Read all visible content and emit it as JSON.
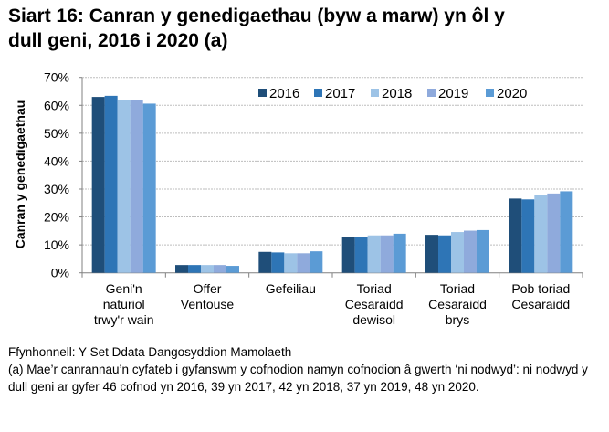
{
  "title_line1": "Siart 16: Canran y genedigaethau (byw a marw) yn ôl y",
  "title_line2": "dull geni, 2016 i 2020 (a)",
  "source": "Ffynhonnell: Y Set Ddata Dangosyddion Mamolaeth",
  "footnote": "(a) Mae’r canrannau’n cyfateb i gyfanswm y cofnodion namyn cofnodion â gwerth ‘ni nodwyd’: ni nodwyd y dull geni ar gyfer 46 cofnod yn 2016, 39 yn 2017, 42 yn 2018, 37 yn 2019, 48 yn 2020.",
  "chart_data": {
    "type": "bar",
    "title": "Siart 16: Canran y genedigaethau (byw a marw) yn ôl y dull geni, 2016 i 2020 (a)",
    "ylabel": "Canran y genedigaethau",
    "xlabel": "",
    "ylim": [
      0,
      70
    ],
    "yticks": [
      "0%",
      "10%",
      "20%",
      "30%",
      "40%",
      "50%",
      "60%",
      "70%"
    ],
    "grid": true,
    "legend_position": "top-right",
    "categories": [
      [
        "Geni'n",
        "naturiol",
        "trwy'r wain"
      ],
      [
        "Offer",
        "Ventouse"
      ],
      [
        "Gefeiliau"
      ],
      [
        "Toriad",
        "Cesaraidd",
        "dewisol"
      ],
      [
        "Toriad",
        "Cesaraidd",
        "brys"
      ],
      [
        "Pob toriad",
        "Cesaraidd"
      ]
    ],
    "series": [
      {
        "name": "2016",
        "color": "#1f4e79",
        "values": [
          63.0,
          2.8,
          7.5,
          12.9,
          13.6,
          26.6
        ]
      },
      {
        "name": "2017",
        "color": "#2e75b6",
        "values": [
          63.4,
          2.8,
          7.3,
          12.9,
          13.4,
          26.3
        ]
      },
      {
        "name": "2018",
        "color": "#9dc3e6",
        "values": [
          62.0,
          2.8,
          7.0,
          13.4,
          14.6,
          27.9
        ]
      },
      {
        "name": "2019",
        "color": "#8faadc",
        "values": [
          61.8,
          2.8,
          7.0,
          13.4,
          15.1,
          28.4
        ]
      },
      {
        "name": "2020",
        "color": "#5b9bd5",
        "values": [
          60.6,
          2.5,
          7.7,
          14.0,
          15.3,
          29.2
        ]
      }
    ]
  }
}
